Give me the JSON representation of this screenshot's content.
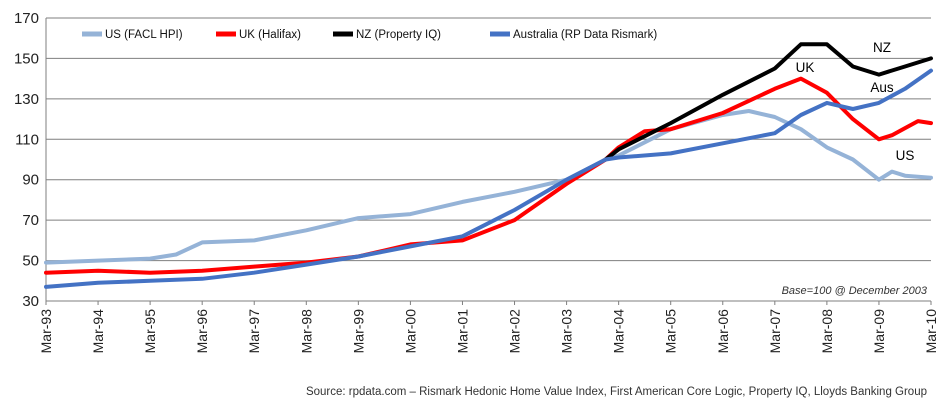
{
  "chart_data": {
    "type": "line",
    "ylim": [
      30,
      170
    ],
    "yticks": [
      30,
      50,
      70,
      90,
      110,
      130,
      150,
      170
    ],
    "grid": true,
    "legend_position": "top-left",
    "x_start": "1993-03",
    "x_end": "2010-03",
    "xtick_labels": [
      "Mar-93",
      "Mar-94",
      "Mar-95",
      "Mar-96",
      "Mar-97",
      "Mar-98",
      "Mar-99",
      "Mar-00",
      "Mar-01",
      "Mar-02",
      "Mar-03",
      "Mar-04",
      "Mar-05",
      "Mar-06",
      "Mar-07",
      "Mar-08",
      "Mar-09",
      "Mar-10"
    ],
    "annotations": {
      "base_note": "Base=100 @ December 2003",
      "series_labels": [
        "NZ",
        "UK",
        "Aus",
        "US"
      ]
    },
    "series": [
      {
        "name": "US (FACL HPI)",
        "color": "#95b3d7",
        "points": [
          [
            "1993-03",
            49
          ],
          [
            "1994-03",
            50
          ],
          [
            "1995-03",
            51
          ],
          [
            "1995-09",
            53
          ],
          [
            "1996-03",
            59
          ],
          [
            "1997-03",
            60
          ],
          [
            "1998-03",
            65
          ],
          [
            "1999-03",
            71
          ],
          [
            "2000-03",
            73
          ],
          [
            "2001-03",
            79
          ],
          [
            "2002-03",
            84
          ],
          [
            "2003-03",
            90
          ],
          [
            "2003-12",
            100
          ],
          [
            "2004-03",
            102
          ],
          [
            "2005-03",
            115
          ],
          [
            "2006-03",
            122
          ],
          [
            "2006-09",
            124
          ],
          [
            "2007-03",
            121
          ],
          [
            "2007-09",
            115
          ],
          [
            "2008-03",
            106
          ],
          [
            "2008-09",
            100
          ],
          [
            "2009-03",
            90
          ],
          [
            "2009-06",
            94
          ],
          [
            "2009-09",
            92
          ],
          [
            "2010-03",
            91
          ]
        ]
      },
      {
        "name": "UK (Halifax)",
        "color": "#ff0000",
        "points": [
          [
            "1993-03",
            44
          ],
          [
            "1994-03",
            45
          ],
          [
            "1995-03",
            44
          ],
          [
            "1996-03",
            45
          ],
          [
            "1997-03",
            47
          ],
          [
            "1998-03",
            49
          ],
          [
            "1999-03",
            52
          ],
          [
            "2000-03",
            58
          ],
          [
            "2001-03",
            60
          ],
          [
            "2002-03",
            70
          ],
          [
            "2003-03",
            88
          ],
          [
            "2003-12",
            100
          ],
          [
            "2004-03",
            106
          ],
          [
            "2004-09",
            114
          ],
          [
            "2005-03",
            115
          ],
          [
            "2006-03",
            123
          ],
          [
            "2007-03",
            135
          ],
          [
            "2007-09",
            140
          ],
          [
            "2008-03",
            133
          ],
          [
            "2008-09",
            120
          ],
          [
            "2009-03",
            110
          ],
          [
            "2009-06",
            112
          ],
          [
            "2009-12",
            119
          ],
          [
            "2010-03",
            118
          ]
        ]
      },
      {
        "name": "NZ (Property  IQ)",
        "color": "#000000",
        "points": [
          [
            "2003-12",
            100
          ],
          [
            "2004-03",
            105
          ],
          [
            "2005-03",
            118
          ],
          [
            "2006-03",
            132
          ],
          [
            "2007-03",
            145
          ],
          [
            "2007-09",
            157
          ],
          [
            "2008-03",
            157
          ],
          [
            "2008-09",
            146
          ],
          [
            "2009-03",
            142
          ],
          [
            "2009-09",
            146
          ],
          [
            "2010-03",
            150
          ]
        ]
      },
      {
        "name": "Australia (RP Data Rismark)",
        "color": "#4472c4",
        "points": [
          [
            "1993-03",
            37
          ],
          [
            "1994-03",
            39
          ],
          [
            "1995-03",
            40
          ],
          [
            "1996-03",
            41
          ],
          [
            "1997-03",
            44
          ],
          [
            "1998-03",
            48
          ],
          [
            "1999-03",
            52
          ],
          [
            "2000-03",
            57
          ],
          [
            "2001-03",
            62
          ],
          [
            "2002-03",
            75
          ],
          [
            "2003-03",
            90
          ],
          [
            "2003-12",
            100
          ],
          [
            "2004-03",
            101
          ],
          [
            "2005-03",
            103
          ],
          [
            "2006-03",
            108
          ],
          [
            "2007-03",
            113
          ],
          [
            "2007-09",
            122
          ],
          [
            "2008-03",
            128
          ],
          [
            "2008-09",
            125
          ],
          [
            "2009-03",
            128
          ],
          [
            "2009-09",
            135
          ],
          [
            "2010-03",
            144
          ]
        ]
      }
    ]
  },
  "source_text": "Source: rpdata.com – Rismark Hedonic Home Value Index, First American Core Logic, Property IQ, Lloyds Banking Group"
}
